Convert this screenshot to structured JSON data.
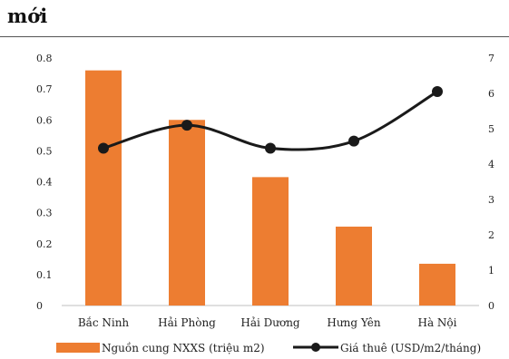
{
  "heading": "mới",
  "chart_data": {
    "type": "bar",
    "categories": [
      "Bắc Ninh",
      "Hải Phòng",
      "Hải Dương",
      "Hưng Yên",
      "Hà Nội"
    ],
    "series": [
      {
        "name": "Nguồn cung NXXS (triệu m2)",
        "type": "bar",
        "axis": "left",
        "color": "#ED7D31",
        "values": [
          0.76,
          0.6,
          0.415,
          0.255,
          0.135
        ]
      },
      {
        "name": "Giá thuê (USD/m2/tháng)",
        "type": "line",
        "axis": "right",
        "color": "#1a1a1a",
        "values": [
          4.45,
          5.1,
          4.45,
          4.65,
          6.05
        ]
      }
    ],
    "y_left": {
      "ylim": [
        0,
        0.8
      ],
      "ticks": [
        "0",
        "0.1",
        "0.2",
        "0.3",
        "0.4",
        "0.5",
        "0.6",
        "0.7",
        "0.8"
      ]
    },
    "y_right": {
      "ylim": [
        0,
        7
      ],
      "ticks": [
        "0",
        "1",
        "2",
        "3",
        "4",
        "5",
        "6",
        "7"
      ]
    },
    "grid": false,
    "legend_position": "bottom"
  }
}
